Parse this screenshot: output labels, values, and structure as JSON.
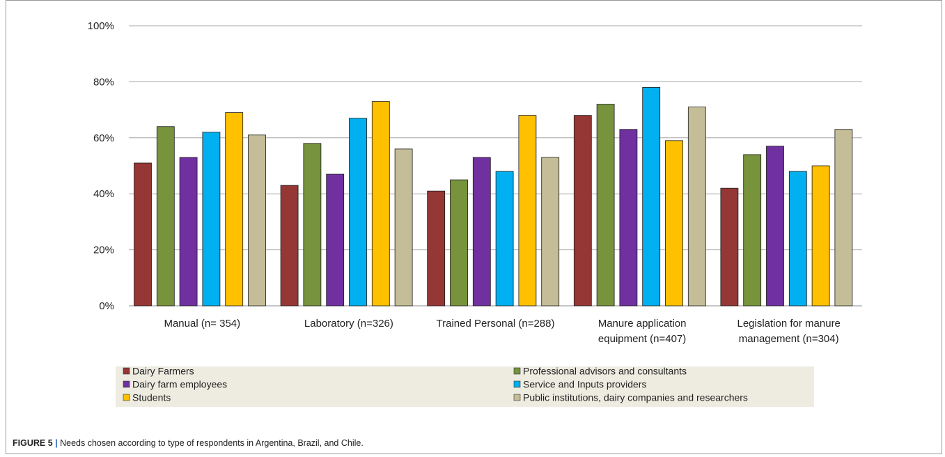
{
  "caption": {
    "label": "FIGURE 5",
    "separator": "|",
    "text": "Needs chosen according to type of respondents in Argentina, Brazil, and Chile."
  },
  "chart_data": {
    "type": "bar",
    "categories": [
      [
        "Manual (n= 354)"
      ],
      [
        "Laboratory (n=326)"
      ],
      [
        "Trained Personal (n=288)"
      ],
      [
        "Manure application",
        "equipment (n=407)"
      ],
      [
        "Legislation for manure",
        "management (n=304)"
      ]
    ],
    "series": [
      {
        "name": "Dairy Farmers",
        "color": "#953735",
        "values": [
          51,
          43,
          41,
          68,
          42
        ]
      },
      {
        "name": "Professional advisors and consultants",
        "color": "#77933c",
        "values": [
          64,
          58,
          45,
          72,
          54
        ]
      },
      {
        "name": "Dairy farm employees",
        "color": "#7030a0",
        "values": [
          53,
          47,
          53,
          63,
          57
        ]
      },
      {
        "name": "Service and Inputs providers",
        "color": "#00b0f0",
        "values": [
          62,
          67,
          48,
          78,
          48
        ]
      },
      {
        "name": "Students",
        "color": "#ffc000",
        "values": [
          69,
          73,
          68,
          59,
          50
        ]
      },
      {
        "name": "Public institutions, dairy companies and researchers",
        "color": "#c4bd97",
        "values": [
          61,
          56,
          53,
          71,
          63
        ]
      }
    ],
    "yticks": [
      "0%",
      "20%",
      "40%",
      "60%",
      "80%",
      "100%"
    ],
    "ylim": [
      0,
      100
    ],
    "grid": true,
    "legend_position": "bottom",
    "legend_background": "#eeece1"
  }
}
